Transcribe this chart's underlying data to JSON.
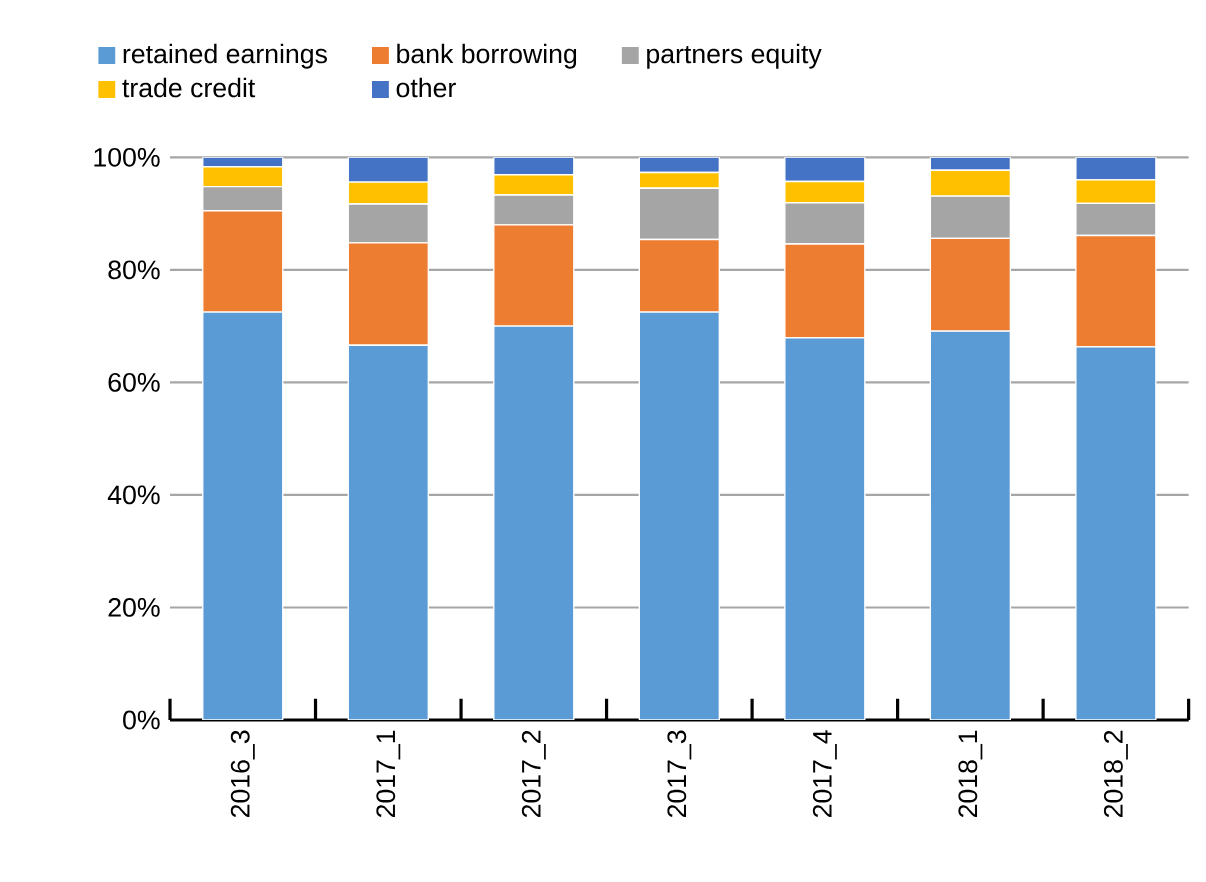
{
  "chart_data": {
    "type": "bar",
    "stacked": true,
    "categories": [
      "2016_3",
      "2017_1",
      "2017_2",
      "2017_3",
      "2017_4",
      "2018_1",
      "2018_2"
    ],
    "series": [
      {
        "name": "retained earnings",
        "color": "#5b9bd5",
        "values": [
          72.5,
          66.6,
          70,
          72.5,
          67.9,
          69.1,
          66.3
        ]
      },
      {
        "name": "bank borrowing",
        "color": "#ed7d31",
        "values": [
          18,
          18.2,
          18,
          12.9,
          16.7,
          16.5,
          19.8
        ]
      },
      {
        "name": "partners equity",
        "color": "#a5a5a5",
        "values": [
          4.3,
          6.9,
          5.3,
          9.1,
          7.3,
          7.5,
          5.7
        ]
      },
      {
        "name": "trade credit",
        "color": "#ffc000",
        "values": [
          3.5,
          3.9,
          3.6,
          2.8,
          3.8,
          4.6,
          4.2
        ]
      },
      {
        "name": "other",
        "color": "#4472c4",
        "values": [
          1.7,
          4.4,
          3.1,
          2.7,
          4.3,
          2.3,
          4
        ]
      }
    ],
    "ylim": [
      0,
      100
    ],
    "yticks": [
      {
        "value": 0,
        "label": "0%"
      },
      {
        "value": 20,
        "label": "20%"
      },
      {
        "value": 40,
        "label": "40%"
      },
      {
        "value": 60,
        "label": "60%"
      },
      {
        "value": 80,
        "label": "80%"
      },
      {
        "value": 100,
        "label": "100%"
      }
    ],
    "grid": "y",
    "legend": "top"
  }
}
